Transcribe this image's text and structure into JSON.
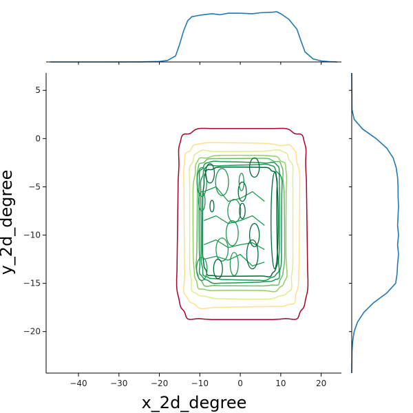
{
  "chart_data": {
    "type": "joint-kde",
    "title": "",
    "xlabel": "x_2d_degree",
    "ylabel": "y_2d_degree",
    "xlim": [
      -48,
      25
    ],
    "ylim": [
      -24.3,
      6.8
    ],
    "x_ticks": [
      -40,
      -30,
      -20,
      -10,
      0,
      10,
      20
    ],
    "y_ticks": [
      5,
      0,
      -5,
      -10,
      -15,
      -20
    ],
    "grid": false,
    "legend": "none",
    "marginal_color": "#1f77b4",
    "contour_colormap": "RdYlGn",
    "contours": [
      {
        "level": 1,
        "color": "#a50026",
        "x_range": [
          -15.5,
          16.5
        ],
        "y_range": [
          -18.8,
          1.0
        ]
      },
      {
        "level": 2,
        "color": "#fee08b",
        "x_range": [
          -14.0,
          14.5
        ],
        "y_range": [
          -17.5,
          -0.5
        ]
      },
      {
        "level": 3,
        "color": "#d9ef8b",
        "x_range": [
          -12.5,
          13.0
        ],
        "y_range": [
          -16.5,
          -1.2
        ]
      },
      {
        "level": 4,
        "color": "#91cf60",
        "x_range": [
          -11.5,
          11.5
        ],
        "y_range": [
          -15.8,
          -1.8
        ]
      },
      {
        "level": 5,
        "color": "#66bd63",
        "x_range": [
          -10.8,
          10.8
        ],
        "y_range": [
          -15.3,
          -2.1
        ]
      },
      {
        "level": 6,
        "color": "#1a9850",
        "x_range": [
          -10.2,
          10.2
        ],
        "y_range": [
          -14.9,
          -2.4
        ]
      },
      {
        "level": 7,
        "color": "#1a9850",
        "x_range": [
          -9.7,
          9.7
        ],
        "y_range": [
          -14.6,
          -2.7
        ]
      },
      {
        "level": 8,
        "color": "#006837",
        "x_range": [
          -9.2,
          9.2
        ],
        "y_range": [
          -14.3,
          -3.0
        ]
      }
    ],
    "inner_blobs": [
      {
        "cx": -9.5,
        "cy": -4.5,
        "rx": 1.2,
        "ry": 1.5
      },
      {
        "cx": -7.5,
        "cy": -3.6,
        "rx": 1.1,
        "ry": 1.0
      },
      {
        "cx": -4.5,
        "cy": -4.5,
        "rx": 1.6,
        "ry": 1.4
      },
      {
        "cx": 0.5,
        "cy": -5.5,
        "rx": 1.0,
        "ry": 1.0
      },
      {
        "cx": 0.3,
        "cy": -4.5,
        "rx": 0.6,
        "ry": 0.9
      },
      {
        "cx": 3.5,
        "cy": -3.0,
        "rx": 1.2,
        "ry": 1.0
      },
      {
        "cx": -9.5,
        "cy": -6.5,
        "rx": 0.8,
        "ry": 1.0
      },
      {
        "cx": -7.0,
        "cy": -7.0,
        "rx": 0.5,
        "ry": 0.6
      },
      {
        "cx": -1.5,
        "cy": -7.5,
        "rx": 1.6,
        "ry": 1.2
      },
      {
        "cx": 0.5,
        "cy": -7.5,
        "rx": 0.7,
        "ry": 0.8
      },
      {
        "cx": -2.0,
        "cy": -9.8,
        "rx": 1.5,
        "ry": 1.3
      },
      {
        "cx": 3.5,
        "cy": -10.0,
        "rx": 1.2,
        "ry": 1.2
      },
      {
        "cx": -4.5,
        "cy": -11.5,
        "rx": 1.5,
        "ry": 1.2
      },
      {
        "cx": 3.0,
        "cy": -12.0,
        "rx": 1.4,
        "ry": 1.5
      },
      {
        "cx": -9.5,
        "cy": -13.5,
        "rx": 1.3,
        "ry": 1.2
      },
      {
        "cx": -5.5,
        "cy": -13.5,
        "rx": 1.1,
        "ry": 1.0
      },
      {
        "cx": -1.5,
        "cy": -13.0,
        "rx": 1.0,
        "ry": 1.2
      },
      {
        "cx": 8.5,
        "cy": -8.5,
        "rx": 0.9,
        "ry": 5.0
      }
    ],
    "marginal_x": {
      "x": [
        -47,
        -35,
        -25,
        -20,
        -18,
        -16,
        -15,
        -14,
        -13,
        -12,
        -10,
        -7,
        -5,
        -3,
        0,
        3,
        5,
        8,
        9,
        10,
        12,
        14,
        15,
        16,
        18,
        20,
        22,
        24
      ],
      "density": [
        0,
        0,
        0.002,
        0.01,
        0.03,
        0.12,
        0.35,
        0.62,
        0.82,
        0.9,
        0.93,
        0.96,
        0.94,
        0.97,
        0.97,
        0.96,
        0.98,
        0.99,
        1.0,
        0.96,
        0.85,
        0.65,
        0.42,
        0.2,
        0.06,
        0.02,
        0.005,
        0
      ]
    },
    "marginal_y": {
      "y": [
        6.8,
        3,
        2,
        1,
        0,
        -1,
        -2,
        -3,
        -4,
        -5,
        -6,
        -7,
        -8,
        -9,
        -10,
        -11,
        -12,
        -13,
        -14,
        -15,
        -16,
        -17,
        -18,
        -19,
        -20,
        -21,
        -22,
        -24.3
      ],
      "density": [
        0,
        0.005,
        0.05,
        0.22,
        0.5,
        0.72,
        0.85,
        0.91,
        0.94,
        0.95,
        0.95,
        0.96,
        0.95,
        0.94,
        0.96,
        0.94,
        0.96,
        0.94,
        0.93,
        0.9,
        0.72,
        0.45,
        0.25,
        0.12,
        0.05,
        0.02,
        0.005,
        0
      ]
    }
  }
}
